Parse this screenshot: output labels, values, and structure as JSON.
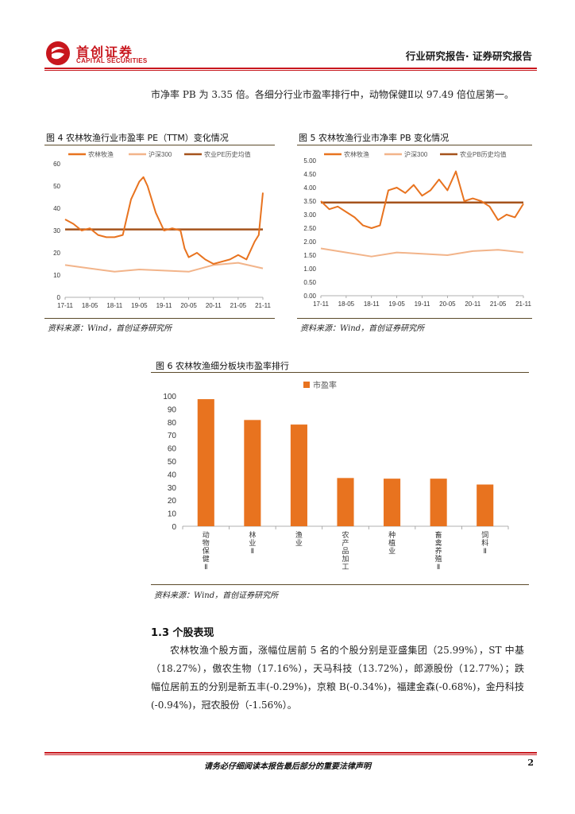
{
  "header": {
    "logo_cn": "首创证券",
    "logo_en": "CAPITAL SECURITIES",
    "title": "行业研究报告· 证券研究报告",
    "brand_color": "#c8161d"
  },
  "intro_text": "市净率 PB 为 3.35 倍。各细分行业市盈率排行中，动物保健Ⅱ以 97.49 倍位居第一。",
  "figures": {
    "fig4_title": "图 4 农林牧渔行业市盈率 PE（TTM）变化情况",
    "fig5_title": "图 5 农林牧渔行业市净率 PB 变化情况",
    "fig6_title": "图 6 农林牧渔细分板块市盈率排行",
    "source": "资料来源：Wind，首创证券研究所"
  },
  "chart_data": [
    {
      "type": "line",
      "title": "图 4 农林牧渔行业市盈率 PE（TTM）变化情况",
      "x_ticks": [
        "17-11",
        "18-05",
        "18-11",
        "19-05",
        "19-11",
        "20-05",
        "20-11",
        "21-05",
        "21-11"
      ],
      "ylim": [
        0,
        60
      ],
      "y_ticks": [
        0,
        10,
        20,
        30,
        40,
        50,
        60
      ],
      "legend": [
        "农林牧渔",
        "沪深300",
        "农业PE历史均值"
      ],
      "legend_position": "top",
      "colors": [
        "#e8731f",
        "#f2b48a",
        "#a5531c"
      ],
      "series": [
        {
          "name": "农林牧渔",
          "x": [
            "17-11",
            "18-01",
            "18-03",
            "18-05",
            "18-07",
            "18-09",
            "18-11",
            "19-01",
            "19-03",
            "19-05",
            "19-06",
            "19-07",
            "19-09",
            "19-11",
            "20-01",
            "20-03",
            "20-04",
            "20-05",
            "20-07",
            "20-09",
            "20-11",
            "21-01",
            "21-03",
            "21-05",
            "21-07",
            "21-09",
            "21-10",
            "21-11"
          ],
          "values": [
            35,
            33,
            30,
            31,
            28,
            27,
            27,
            28,
            44,
            52,
            54,
            50,
            38,
            30,
            31,
            30,
            22,
            18,
            20,
            17,
            15,
            16,
            17,
            19,
            17,
            25,
            28,
            47
          ]
        },
        {
          "name": "沪深300",
          "x": [
            "17-11",
            "18-05",
            "18-11",
            "19-05",
            "19-11",
            "20-05",
            "20-11",
            "21-05",
            "21-11"
          ],
          "values": [
            14.5,
            13,
            11.5,
            12.5,
            12,
            11.5,
            14.5,
            15.5,
            13
          ]
        },
        {
          "name": "农业PE历史均值",
          "x": [
            "17-11",
            "21-11"
          ],
          "values": [
            30.5,
            30.5
          ]
        }
      ]
    },
    {
      "type": "line",
      "title": "图 5 农林牧渔行业市净率 PB 变化情况",
      "x_ticks": [
        "17-11",
        "18-05",
        "18-11",
        "19-05",
        "19-11",
        "20-05",
        "20-11",
        "21-05",
        "21-11"
      ],
      "ylim": [
        0,
        5
      ],
      "y_ticks": [
        0.0,
        0.5,
        1.0,
        1.5,
        2.0,
        2.5,
        3.0,
        3.5,
        4.0,
        4.5,
        5.0
      ],
      "legend": [
        "农林牧渔",
        "沪深300",
        "农业PB历史均值"
      ],
      "legend_position": "top",
      "colors": [
        "#e8731f",
        "#f2b48a",
        "#a5531c"
      ],
      "series": [
        {
          "name": "农林牧渔",
          "x": [
            "17-11",
            "18-01",
            "18-03",
            "18-05",
            "18-07",
            "18-09",
            "18-11",
            "19-01",
            "19-03",
            "19-05",
            "19-07",
            "19-09",
            "19-11",
            "20-01",
            "20-03",
            "20-05",
            "20-07",
            "20-09",
            "20-11",
            "21-01",
            "21-03",
            "21-05",
            "21-07",
            "21-09",
            "21-11"
          ],
          "values": [
            3.5,
            3.2,
            3.3,
            3.1,
            2.9,
            2.6,
            2.5,
            2.6,
            3.9,
            4.0,
            3.8,
            4.1,
            3.7,
            3.9,
            4.3,
            3.9,
            4.6,
            3.5,
            3.6,
            3.5,
            3.3,
            2.8,
            3.0,
            2.9,
            3.4
          ]
        },
        {
          "name": "沪深300",
          "x": [
            "17-11",
            "18-05",
            "18-11",
            "19-05",
            "19-11",
            "20-05",
            "20-11",
            "21-05",
            "21-11"
          ],
          "values": [
            1.75,
            1.6,
            1.45,
            1.6,
            1.55,
            1.5,
            1.65,
            1.7,
            1.6
          ]
        },
        {
          "name": "农业PB历史均值",
          "x": [
            "17-11",
            "21-11"
          ],
          "values": [
            3.45,
            3.45
          ]
        }
      ]
    },
    {
      "type": "bar",
      "title": "图 6 农林牧渔细分板块市盈率排行",
      "legend": [
        "市盈率"
      ],
      "legend_position": "top",
      "color": "#e8731f",
      "ylim": [
        0,
        100
      ],
      "y_ticks": [
        0,
        10,
        20,
        30,
        40,
        50,
        60,
        70,
        80,
        90,
        100
      ],
      "categories": [
        "动物保健Ⅱ",
        "林业Ⅱ",
        "渔业",
        "农产品加工",
        "种植业",
        "畜禽养殖Ⅱ",
        "饲料Ⅱ"
      ],
      "values": [
        97.49,
        81.5,
        78,
        37,
        36.5,
        36.5,
        32
      ]
    }
  ],
  "section": {
    "heading": "1.3  个股表现",
    "paragraph": "农林牧渔个股方面，涨幅位居前 5 名的个股分别是亚盛集团（25.99%），ST 中基（18.27%），傲农生物（17.16%），天马科技（13.72%），郎源股份（12.77%）；跌幅位居前五的分别是新五丰(-0.29%)，京粮 B(-0.34%)，福建金森(-0.68%)，金丹科技(-0.94%)，冠农股份（-1.56%）。"
  },
  "footer": {
    "disclaimer": "请务必仔细阅读本报告最后部分的重要法律声明",
    "page_number": "2"
  }
}
